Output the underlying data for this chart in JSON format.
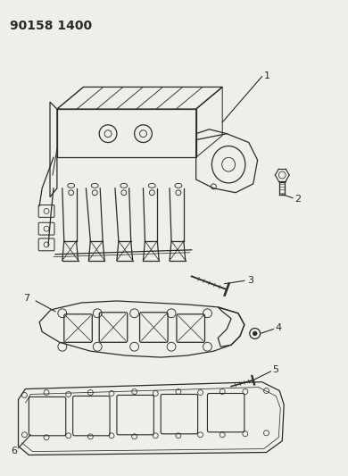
{
  "title": "90158 1400",
  "title_fontsize": 10,
  "title_fontweight": "bold",
  "bg_color": "#f0eeeb",
  "line_color": "#2a2a2a",
  "fig_width": 3.9,
  "fig_height": 5.33,
  "dpi": 100
}
